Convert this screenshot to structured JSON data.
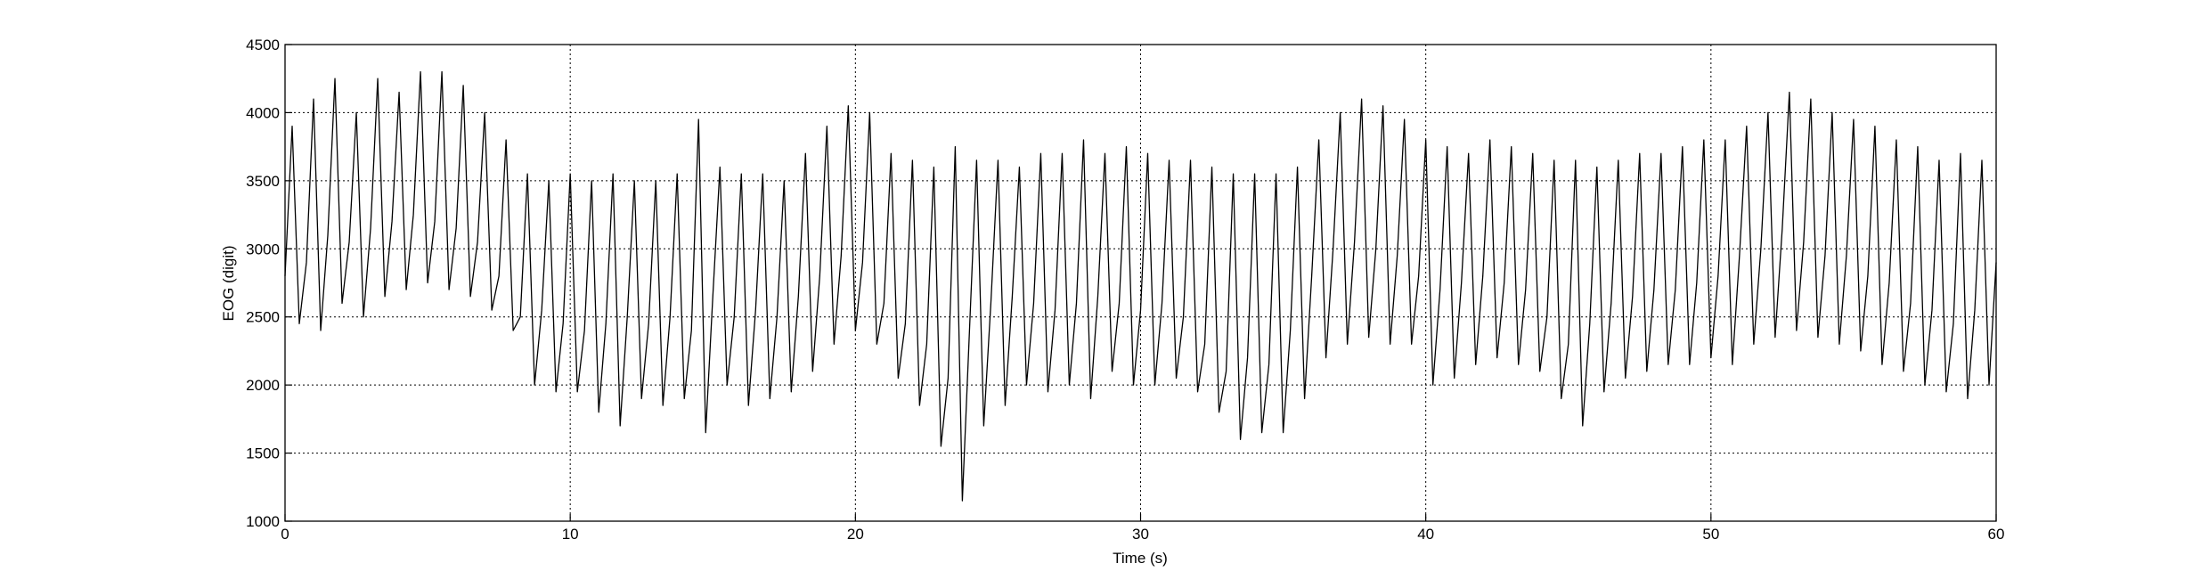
{
  "chart_data": {
    "type": "line",
    "xlabel": "Time (s)",
    "ylabel": "EOG (digit)",
    "color": "#000000",
    "grid": true,
    "xlim": [
      0,
      60
    ],
    "xticks": [
      0,
      10,
      20,
      30,
      40,
      50,
      60
    ],
    "ylim": [
      1000,
      4500
    ],
    "yticks": [
      1000,
      1500,
      2000,
      2500,
      3000,
      3500,
      4000,
      4500
    ],
    "x": [
      0,
      0.25,
      0.5,
      0.75,
      1,
      1.25,
      1.5,
      1.75,
      2,
      2.25,
      2.5,
      2.75,
      3,
      3.25,
      3.5,
      3.75,
      4,
      4.25,
      4.5,
      4.75,
      5,
      5.25,
      5.5,
      5.75,
      6,
      6.25,
      6.5,
      6.75,
      7,
      7.25,
      7.5,
      7.75,
      8,
      8.25,
      8.5,
      8.75,
      9,
      9.25,
      9.5,
      9.75,
      10,
      10.25,
      10.5,
      10.75,
      11,
      11.25,
      11.5,
      11.75,
      12,
      12.25,
      12.5,
      12.75,
      13,
      13.25,
      13.5,
      13.75,
      14,
      14.25,
      14.5,
      14.75,
      15,
      15.25,
      15.5,
      15.75,
      16,
      16.25,
      16.5,
      16.75,
      17,
      17.25,
      17.5,
      17.75,
      18,
      18.25,
      18.5,
      18.75,
      19,
      19.25,
      19.5,
      19.75,
      20,
      20.25,
      20.5,
      20.75,
      21,
      21.25,
      21.5,
      21.75,
      22,
      22.25,
      22.5,
      22.75,
      23,
      23.25,
      23.5,
      23.75,
      24,
      24.25,
      24.5,
      24.75,
      25,
      25.25,
      25.5,
      25.75,
      26,
      26.25,
      26.5,
      26.75,
      27,
      27.25,
      27.5,
      27.75,
      28,
      28.25,
      28.5,
      28.75,
      29,
      29.25,
      29.5,
      29.75,
      30,
      30.25,
      30.5,
      30.75,
      31,
      31.25,
      31.5,
      31.75,
      32,
      32.25,
      32.5,
      32.75,
      33,
      33.25,
      33.5,
      33.75,
      34,
      34.25,
      34.5,
      34.75,
      35,
      35.25,
      35.5,
      35.75,
      36,
      36.25,
      36.5,
      36.75,
      37,
      37.25,
      37.5,
      37.75,
      38,
      38.25,
      38.5,
      38.75,
      39,
      39.25,
      39.5,
      39.75,
      40,
      40.25,
      40.5,
      40.75,
      41,
      41.25,
      41.5,
      41.75,
      42,
      42.25,
      42.5,
      42.75,
      43,
      43.25,
      43.5,
      43.75,
      44,
      44.25,
      44.5,
      44.75,
      45,
      45.25,
      45.5,
      45.75,
      46,
      46.25,
      46.5,
      46.75,
      47,
      47.25,
      47.5,
      47.75,
      48,
      48.25,
      48.5,
      48.75,
      49,
      49.25,
      49.5,
      49.75,
      50,
      50.25,
      50.5,
      50.75,
      51,
      51.25,
      51.5,
      51.75,
      52,
      52.25,
      52.5,
      52.75,
      53,
      53.25,
      53.5,
      53.75,
      54,
      54.25,
      54.5,
      54.75,
      55,
      55.25,
      55.5,
      55.75,
      56,
      56.25,
      56.5,
      56.75,
      57,
      57.25,
      57.5,
      57.75,
      58,
      58.25,
      58.5,
      58.75,
      59,
      59.25,
      59.5,
      59.75,
      60
    ],
    "values": [
      2800,
      3900,
      2450,
      2900,
      4100,
      2400,
      3100,
      4250,
      2600,
      3050,
      4000,
      2500,
      3150,
      4250,
      2650,
      3200,
      4150,
      2700,
      3250,
      4300,
      2750,
      3200,
      4300,
      2700,
      3150,
      4200,
      2650,
      3050,
      4000,
      2550,
      2800,
      3800,
      2400,
      2500,
      3550,
      2000,
      2550,
      3500,
      1950,
      2450,
      3550,
      1950,
      2400,
      3500,
      1800,
      2450,
      3550,
      1700,
      2500,
      3500,
      1900,
      2450,
      3500,
      1850,
      2500,
      3550,
      1900,
      2400,
      3950,
      1650,
      2650,
      3600,
      2000,
      2500,
      3550,
      1850,
      2550,
      3550,
      1900,
      2500,
      3500,
      1950,
      2650,
      3700,
      2100,
      2800,
      3900,
      2300,
      2950,
      4050,
      2400,
      2900,
      4000,
      2300,
      2600,
      3700,
      2050,
      2450,
      3650,
      1850,
      2300,
      3600,
      1550,
      2050,
      3750,
      1150,
      2400,
      3650,
      1700,
      2600,
      3650,
      1850,
      2650,
      3600,
      2000,
      2600,
      3700,
      1950,
      2550,
      3700,
      2000,
      2600,
      3800,
      1900,
      2650,
      3700,
      2100,
      2600,
      3750,
      2000,
      2550,
      3700,
      2000,
      2600,
      3650,
      2050,
      2500,
      3650,
      1950,
      2300,
      3600,
      1800,
      2100,
      3550,
      1600,
      2200,
      3550,
      1650,
      2150,
      3550,
      1650,
      2400,
      3600,
      1900,
      2800,
      3800,
      2200,
      3000,
      4000,
      2300,
      3050,
      4100,
      2350,
      3000,
      4050,
      2300,
      2950,
      3950,
      2300,
      2800,
      3800,
      2000,
      2700,
      3750,
      2050,
      2750,
      3700,
      2150,
      2800,
      3800,
      2200,
      2750,
      3750,
      2150,
      2700,
      3700,
      2100,
      2500,
      3650,
      1900,
      2300,
      3650,
      1700,
      2450,
      3600,
      1950,
      2600,
      3650,
      2050,
      2650,
      3700,
      2100,
      2700,
      3700,
      2150,
      2700,
      3750,
      2150,
      2750,
      3800,
      2200,
      2800,
      3800,
      2150,
      2950,
      3900,
      2300,
      3000,
      4000,
      2350,
      3150,
      4150,
      2400,
      3050,
      4100,
      2350,
      2950,
      4000,
      2300,
      2950,
      3950,
      2250,
      2800,
      3900,
      2150,
      2750,
      3800,
      2100,
      2600,
      3750,
      2000,
      2550,
      3650,
      1950,
      2450,
      3700,
      1900,
      2550,
      3650,
      2000,
      2900
    ]
  }
}
